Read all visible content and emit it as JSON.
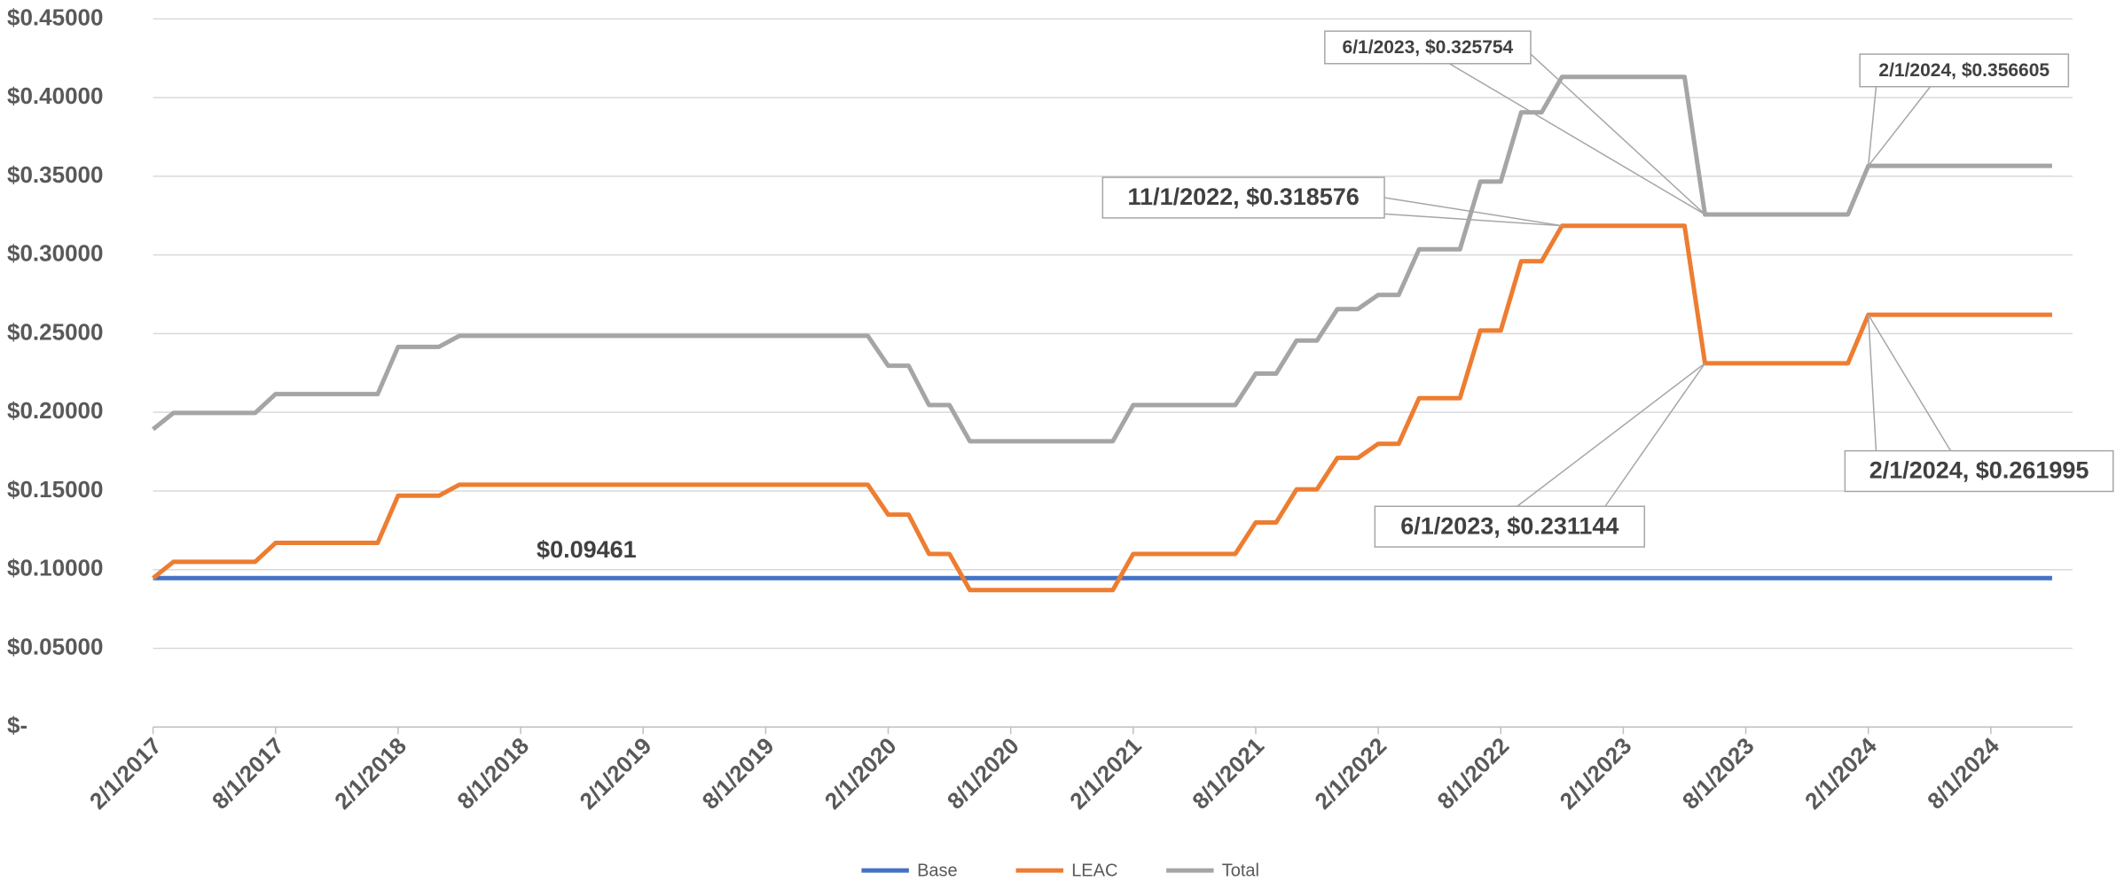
{
  "chart_data": {
    "type": "line",
    "x": [
      "2/1/2017",
      "3/1/2017",
      "4/1/2017",
      "5/1/2017",
      "6/1/2017",
      "7/1/2017",
      "8/1/2017",
      "9/1/2017",
      "10/1/2017",
      "11/1/2017",
      "12/1/2017",
      "1/1/2018",
      "2/1/2018",
      "3/1/2018",
      "4/1/2018",
      "5/1/2018",
      "6/1/2018",
      "7/1/2018",
      "8/1/2018",
      "9/1/2018",
      "10/1/2018",
      "11/1/2018",
      "12/1/2018",
      "1/1/2019",
      "2/1/2019",
      "3/1/2019",
      "4/1/2019",
      "5/1/2019",
      "6/1/2019",
      "7/1/2019",
      "8/1/2019",
      "9/1/2019",
      "10/1/2019",
      "11/1/2019",
      "12/1/2019",
      "1/1/2020",
      "2/1/2020",
      "3/1/2020",
      "4/1/2020",
      "5/1/2020",
      "6/1/2020",
      "7/1/2020",
      "8/1/2020",
      "9/1/2020",
      "10/1/2020",
      "11/1/2020",
      "12/1/2020",
      "1/1/2021",
      "2/1/2021",
      "3/1/2021",
      "4/1/2021",
      "5/1/2021",
      "6/1/2021",
      "7/1/2021",
      "8/1/2021",
      "9/1/2021",
      "10/1/2021",
      "11/1/2021",
      "12/1/2021",
      "1/1/2022",
      "2/1/2022",
      "3/1/2022",
      "4/1/2022",
      "5/1/2022",
      "6/1/2022",
      "7/1/2022",
      "8/1/2022",
      "9/1/2022",
      "10/1/2022",
      "11/1/2022",
      "12/1/2022",
      "1/1/2023",
      "2/1/2023",
      "3/1/2023",
      "4/1/2023",
      "5/1/2023",
      "6/1/2023",
      "7/1/2023",
      "8/1/2023",
      "9/1/2023",
      "10/1/2023",
      "11/1/2023",
      "12/1/2023",
      "1/1/2024",
      "2/1/2024",
      "3/1/2024",
      "4/1/2024",
      "5/1/2024",
      "6/1/2024",
      "7/1/2024",
      "8/1/2024",
      "9/1/2024",
      "10/1/2024",
      "11/1/2024"
    ],
    "series": [
      {
        "name": "Base",
        "color": "#4472c4",
        "values": [
          0.09461,
          0.09461,
          0.09461,
          0.09461,
          0.09461,
          0.09461,
          0.09461,
          0.09461,
          0.09461,
          0.09461,
          0.09461,
          0.09461,
          0.09461,
          0.09461,
          0.09461,
          0.09461,
          0.09461,
          0.09461,
          0.09461,
          0.09461,
          0.09461,
          0.09461,
          0.09461,
          0.09461,
          0.09461,
          0.09461,
          0.09461,
          0.09461,
          0.09461,
          0.09461,
          0.09461,
          0.09461,
          0.09461,
          0.09461,
          0.09461,
          0.09461,
          0.09461,
          0.09461,
          0.09461,
          0.09461,
          0.09461,
          0.09461,
          0.09461,
          0.09461,
          0.09461,
          0.09461,
          0.09461,
          0.09461,
          0.09461,
          0.09461,
          0.09461,
          0.09461,
          0.09461,
          0.09461,
          0.09461,
          0.09461,
          0.09461,
          0.09461,
          0.09461,
          0.09461,
          0.09461,
          0.09461,
          0.09461,
          0.09461,
          0.09461,
          0.09461,
          0.09461,
          0.09461,
          0.09461,
          0.09461,
          0.09461,
          0.09461,
          0.09461,
          0.09461,
          0.09461,
          0.09461,
          0.09461,
          0.09461,
          0.09461,
          0.09461,
          0.09461,
          0.09461,
          0.09461,
          0.09461,
          0.09461,
          0.09461,
          0.09461,
          0.09461,
          0.09461,
          0.09461,
          0.09461,
          0.09461,
          0.09461,
          0.09461
        ]
      },
      {
        "name": "LEAC",
        "color": "#ed7d31",
        "values": [
          0.09461,
          0.105,
          0.105,
          0.105,
          0.105,
          0.105,
          0.117,
          0.117,
          0.117,
          0.117,
          0.117,
          0.117,
          0.147,
          0.147,
          0.147,
          0.154,
          0.154,
          0.154,
          0.154,
          0.154,
          0.154,
          0.154,
          0.154,
          0.154,
          0.154,
          0.154,
          0.154,
          0.154,
          0.154,
          0.154,
          0.154,
          0.154,
          0.154,
          0.154,
          0.154,
          0.154,
          0.135,
          0.135,
          0.11,
          0.11,
          0.087,
          0.087,
          0.087,
          0.087,
          0.087,
          0.087,
          0.087,
          0.087,
          0.11,
          0.11,
          0.11,
          0.11,
          0.11,
          0.11,
          0.13,
          0.13,
          0.151,
          0.151,
          0.171,
          0.171,
          0.18,
          0.18,
          0.209,
          0.209,
          0.209,
          0.252,
          0.252,
          0.296,
          0.296,
          0.318576,
          0.318576,
          0.318576,
          0.318576,
          0.318576,
          0.318576,
          0.318576,
          0.231144,
          0.231144,
          0.231144,
          0.231144,
          0.231144,
          0.231144,
          0.231144,
          0.231144,
          0.261995,
          0.261995,
          0.261995,
          0.261995,
          0.261995,
          0.261995,
          0.261995,
          0.261995,
          0.261995,
          0.261995
        ]
      },
      {
        "name": "Total",
        "color": "#a5a5a5",
        "values": [
          0.18922,
          0.19961,
          0.19961,
          0.19961,
          0.19961,
          0.19961,
          0.21161,
          0.21161,
          0.21161,
          0.21161,
          0.21161,
          0.21161,
          0.24161,
          0.24161,
          0.24161,
          0.24861,
          0.24861,
          0.24861,
          0.24861,
          0.24861,
          0.24861,
          0.24861,
          0.24861,
          0.24861,
          0.24861,
          0.24861,
          0.24861,
          0.24861,
          0.24861,
          0.24861,
          0.24861,
          0.24861,
          0.24861,
          0.24861,
          0.24861,
          0.24861,
          0.22961,
          0.22961,
          0.20461,
          0.20461,
          0.18161,
          0.18161,
          0.18161,
          0.18161,
          0.18161,
          0.18161,
          0.18161,
          0.18161,
          0.20461,
          0.20461,
          0.20461,
          0.20461,
          0.20461,
          0.20461,
          0.22461,
          0.22461,
          0.24561,
          0.24561,
          0.26561,
          0.26561,
          0.27461,
          0.27461,
          0.30361,
          0.30361,
          0.30361,
          0.34661,
          0.34661,
          0.39061,
          0.39061,
          0.413186,
          0.413186,
          0.413186,
          0.413186,
          0.413186,
          0.413186,
          0.413186,
          0.325754,
          0.325754,
          0.325754,
          0.325754,
          0.325754,
          0.325754,
          0.325754,
          0.325754,
          0.356605,
          0.356605,
          0.356605,
          0.356605,
          0.356605,
          0.356605,
          0.356605,
          0.356605,
          0.356605,
          0.356605
        ]
      }
    ],
    "xlim": [
      "2/1/2017",
      "12/1/2024"
    ],
    "xticks": [
      "2/1/2017",
      "8/1/2017",
      "2/1/2018",
      "8/1/2018",
      "2/1/2019",
      "8/1/2019",
      "2/1/2020",
      "8/1/2020",
      "2/1/2021",
      "8/1/2021",
      "2/1/2022",
      "8/1/2022",
      "2/1/2023",
      "8/1/2023",
      "2/1/2024",
      "8/1/2024"
    ],
    "ylim": [
      0,
      0.45
    ],
    "yticks": [
      {
        "value": 0,
        "label": "$-"
      },
      {
        "value": 0.05,
        "label": "$0.05000"
      },
      {
        "value": 0.1,
        "label": "$0.10000"
      },
      {
        "value": 0.15,
        "label": "$0.15000"
      },
      {
        "value": 0.2,
        "label": "$0.20000"
      },
      {
        "value": 0.25,
        "label": "$0.25000"
      },
      {
        "value": 0.3,
        "label": "$0.30000"
      },
      {
        "value": 0.35,
        "label": "$0.35000"
      },
      {
        "value": 0.4,
        "label": "$0.40000"
      },
      {
        "value": 0.45,
        "label": "$0.45000"
      }
    ],
    "grid": true,
    "legend": "bottom",
    "annotations": [
      {
        "text": "6/1/2023,  $0.325754",
        "x": "6/1/2023",
        "y": 0.325754
      },
      {
        "text": "2/1/2024,  $0.356605",
        "x": "2/1/2024",
        "y": 0.356605
      },
      {
        "text": "11/1/2022,  $0.318576",
        "x": "11/1/2022",
        "y": 0.318576
      },
      {
        "text": "6/1/2023,  $0.231144",
        "x": "6/1/2023",
        "y": 0.231144
      },
      {
        "text": "2/1/2024,  $0.261995",
        "x": "2/1/2024",
        "y": 0.261995
      },
      {
        "text": "$0.09461",
        "x": "9/1/2018",
        "y": 0.09461
      }
    ]
  }
}
